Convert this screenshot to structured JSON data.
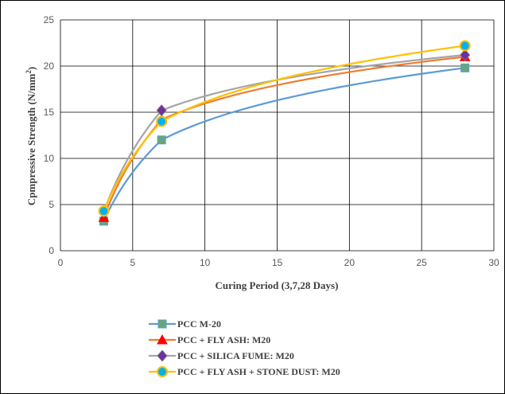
{
  "chart_data": {
    "type": "line",
    "xlabel": "Curing Period (3,7,28 Days)",
    "ylabel_main": "Cpmpressive Strength (N/mm",
    "ylabel_sup": "2",
    "ylabel_end": ")",
    "xlim": [
      0,
      30
    ],
    "ylim": [
      0,
      25
    ],
    "xticks": [
      0,
      5,
      10,
      15,
      20,
      25,
      30
    ],
    "yticks": [
      0,
      5,
      10,
      15,
      20,
      25
    ],
    "grid": true,
    "legend_position": "bottom",
    "series": [
      {
        "name": "PCC M-20",
        "color": "#5B9BD5",
        "marker": "x-square",
        "marker_color": "#70AD47",
        "x": [
          3,
          7,
          28
        ],
        "y": [
          3.2,
          12.0,
          19.8
        ]
      },
      {
        "name": "PCC + FLY ASH: M20",
        "color": "#ED7D31",
        "marker": "triangle",
        "marker_color": "#FF0000",
        "x": [
          3,
          7,
          28
        ],
        "y": [
          3.6,
          14.2,
          21.0
        ]
      },
      {
        "name": "PCC + SILICA FUME: M20",
        "color": "#A5A5A5",
        "marker": "diamond",
        "marker_color": "#7030A0",
        "x": [
          3,
          7,
          28
        ],
        "y": [
          4.2,
          15.2,
          21.2
        ]
      },
      {
        "name": "PCC + FLY ASH + STONE DUST: M20",
        "color": "#FFC000",
        "marker": "circle",
        "marker_color": "#00B0F0",
        "x": [
          3,
          7,
          28
        ],
        "y": [
          4.3,
          14.0,
          22.2
        ]
      }
    ]
  }
}
